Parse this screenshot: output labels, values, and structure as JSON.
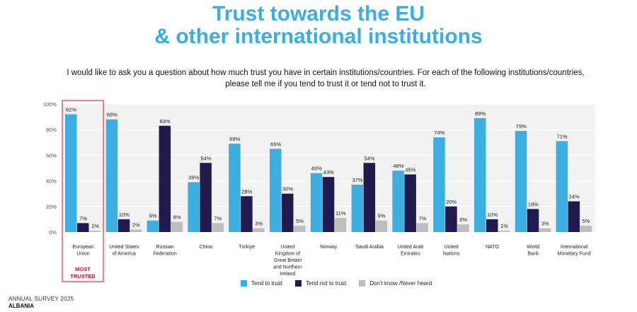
{
  "title_line1": "Trust towards the EU",
  "title_line2": "& other international institutions",
  "question": "I would like to ask you a question about how much trust you have in certain institutions/countries. For each of the following institutions/countries, please tell me if you tend to trust it or tend not to trust it.",
  "highlight_label": [
    "MOST",
    "TRUSTED"
  ],
  "footer": {
    "survey": "ANNUAL SURVEY 2025",
    "country": "ALBANIA"
  },
  "colors": {
    "trust": "#3daee0",
    "not_trust": "#211a4e",
    "dont_know": "#bcbec0",
    "title": "#3aaee2",
    "highlight": "#e03a3e",
    "plot_bg": "#f2f2f2"
  },
  "chart_data": {
    "type": "bar",
    "title": "Trust towards the EU & other international institutions",
    "ylim": [
      0,
      100
    ],
    "yticks": [
      "0%",
      "20%",
      "40%",
      "60%",
      "80%",
      "100%"
    ],
    "grid": true,
    "legend_placement": "bottom",
    "categories": [
      [
        "European",
        "Union"
      ],
      [
        "United States",
        "of America"
      ],
      [
        "Russian",
        "Federation"
      ],
      [
        "China"
      ],
      [
        "Türkiye"
      ],
      [
        "United",
        "Kingdom of",
        "Great Britain",
        "and Northern",
        "Ireland"
      ],
      [
        "Norway"
      ],
      [
        "Saudi Arabia"
      ],
      [
        "United Arab",
        "Emirates"
      ],
      [
        "United",
        "Nations"
      ],
      [
        "NATO"
      ],
      [
        "World",
        "Bank"
      ],
      [
        "International",
        "Monetary Fund"
      ]
    ],
    "series": [
      {
        "name": "Tend to trust",
        "values": [
          92,
          88,
          9,
          39,
          69,
          65,
          46,
          37,
          48,
          74,
          89,
          79,
          71
        ]
      },
      {
        "name": "Tend not to trust",
        "values": [
          7,
          10,
          83,
          54,
          28,
          30,
          43,
          54,
          45,
          20,
          10,
          18,
          24
        ]
      },
      {
        "name": "Don't know /Never heard",
        "values": [
          1,
          2,
          8,
          7,
          3,
          5,
          11,
          9,
          7,
          6,
          1,
          3,
          5
        ]
      }
    ]
  }
}
